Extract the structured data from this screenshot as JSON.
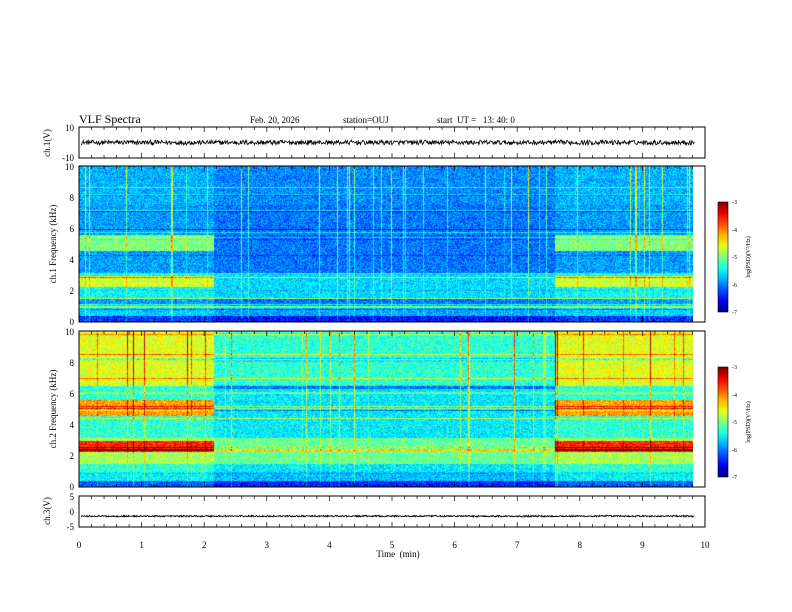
{
  "header": {
    "title": "VLF Spectra",
    "date": "Feb. 20, 2026",
    "station": "station=OUJ",
    "start": "start  UT =   13: 40: 0"
  },
  "chart_data": [
    {
      "type": "line",
      "name": "ch1-waveform",
      "ylabel": "ch.1(V)",
      "ylim": [
        -10,
        10
      ],
      "yticks": [
        "10",
        "-10"
      ],
      "level": 0,
      "noise_amplitude": 1.5,
      "xlim": [
        0,
        10
      ]
    },
    {
      "type": "heatmap",
      "name": "ch1-spectrogram",
      "ylabel": "ch.1 Frequency (kHz)",
      "ylim": [
        0,
        10
      ],
      "yticks": [
        "0",
        "2",
        "4",
        "6",
        "8",
        "10"
      ],
      "xlim": [
        0,
        10
      ],
      "data_end_min": 9.83,
      "segments_min": [
        2.15,
        7.6
      ],
      "colorbar": {
        "label": "log(PSD)(V²/Hz)",
        "range": [
          -7,
          -3
        ],
        "ticks": [
          "-3",
          "-4",
          "-5",
          "-6",
          "-7"
        ]
      }
    },
    {
      "type": "heatmap",
      "name": "ch2-spectrogram",
      "ylabel": "ch.2 Frequency (kHz)",
      "ylim": [
        0,
        10
      ],
      "yticks": [
        "0",
        "2",
        "4",
        "6",
        "8",
        "10"
      ],
      "xlim": [
        0,
        10
      ],
      "data_end_min": 9.83,
      "segments_min": [
        2.15,
        7.6
      ],
      "colorbar": {
        "label": "log(PSD)(V²/Hz)",
        "range": [
          -7,
          -3
        ],
        "ticks": [
          "-3",
          "-4",
          "-5",
          "-6",
          "-7"
        ]
      }
    },
    {
      "type": "line",
      "name": "ch3-waveform",
      "ylabel": "ch.3(V)",
      "ylim": [
        -5,
        5
      ],
      "yticks": [
        "5",
        "0",
        "-5"
      ],
      "level": -1.5,
      "noise_amplitude": 0.25,
      "xlim": [
        0,
        10
      ]
    }
  ],
  "xaxis": {
    "label": "Time  (min)",
    "ticks": [
      "0",
      "1",
      "2",
      "3",
      "4",
      "5",
      "6",
      "7",
      "8",
      "9",
      "10"
    ]
  },
  "colors": {
    "line": "#000000",
    "axes": "#000000",
    "background": "#ffffff"
  }
}
